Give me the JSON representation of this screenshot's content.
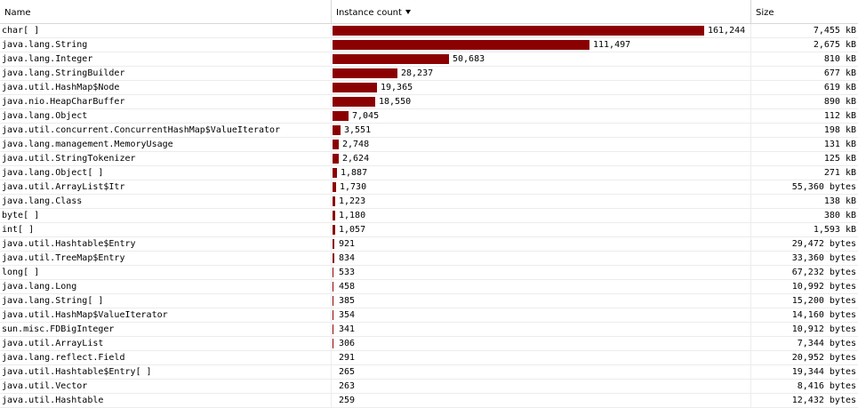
{
  "columns": {
    "name": "Name",
    "instance_count": "Instance count",
    "size": "Size"
  },
  "sort_indicator": "sort-descending-icon",
  "colors": {
    "bar": "#8b0000"
  },
  "max_count": 161244,
  "rows": [
    {
      "name": "char[ ]",
      "count": 161244,
      "count_label": "161,244",
      "size": "7,455 kB"
    },
    {
      "name": "java.lang.String",
      "count": 111497,
      "count_label": "111,497",
      "size": "2,675 kB"
    },
    {
      "name": "java.lang.Integer",
      "count": 50683,
      "count_label": "50,683",
      "size": "810 kB"
    },
    {
      "name": "java.lang.StringBuilder",
      "count": 28237,
      "count_label": "28,237",
      "size": "677 kB"
    },
    {
      "name": "java.util.HashMap$Node",
      "count": 19365,
      "count_label": "19,365",
      "size": "619 kB"
    },
    {
      "name": "java.nio.HeapCharBuffer",
      "count": 18550,
      "count_label": "18,550",
      "size": "890 kB"
    },
    {
      "name": "java.lang.Object",
      "count": 7045,
      "count_label": "7,045",
      "size": "112 kB"
    },
    {
      "name": "java.util.concurrent.ConcurrentHashMap$ValueIterator",
      "count": 3551,
      "count_label": "3,551",
      "size": "198 kB"
    },
    {
      "name": "java.lang.management.MemoryUsage",
      "count": 2748,
      "count_label": "2,748",
      "size": "131 kB"
    },
    {
      "name": "java.util.StringTokenizer",
      "count": 2624,
      "count_label": "2,624",
      "size": "125 kB"
    },
    {
      "name": "java.lang.Object[ ]",
      "count": 1887,
      "count_label": "1,887",
      "size": "271 kB"
    },
    {
      "name": "java.util.ArrayList$Itr",
      "count": 1730,
      "count_label": "1,730",
      "size": "55,360 bytes"
    },
    {
      "name": "java.lang.Class",
      "count": 1223,
      "count_label": "1,223",
      "size": "138 kB"
    },
    {
      "name": "byte[ ]",
      "count": 1180,
      "count_label": "1,180",
      "size": "380 kB"
    },
    {
      "name": "int[ ]",
      "count": 1057,
      "count_label": "1,057",
      "size": "1,593 kB"
    },
    {
      "name": "java.util.Hashtable$Entry",
      "count": 921,
      "count_label": "921",
      "size": "29,472 bytes"
    },
    {
      "name": "java.util.TreeMap$Entry",
      "count": 834,
      "count_label": "834",
      "size": "33,360 bytes"
    },
    {
      "name": "long[ ]",
      "count": 533,
      "count_label": "533",
      "size": "67,232 bytes"
    },
    {
      "name": "java.lang.Long",
      "count": 458,
      "count_label": "458",
      "size": "10,992 bytes"
    },
    {
      "name": "java.lang.String[ ]",
      "count": 385,
      "count_label": "385",
      "size": "15,200 bytes"
    },
    {
      "name": "java.util.HashMap$ValueIterator",
      "count": 354,
      "count_label": "354",
      "size": "14,160 bytes"
    },
    {
      "name": "sun.misc.FDBigInteger",
      "count": 341,
      "count_label": "341",
      "size": "10,912 bytes"
    },
    {
      "name": "java.util.ArrayList",
      "count": 306,
      "count_label": "306",
      "size": "7,344 bytes"
    },
    {
      "name": "java.lang.reflect.Field",
      "count": 291,
      "count_label": "291",
      "size": "20,952 bytes"
    },
    {
      "name": "java.util.Hashtable$Entry[ ]",
      "count": 265,
      "count_label": "265",
      "size": "19,344 bytes"
    },
    {
      "name": "java.util.Vector",
      "count": 263,
      "count_label": "263",
      "size": "8,416 bytes"
    },
    {
      "name": "java.util.Hashtable",
      "count": 259,
      "count_label": "259",
      "size": "12,432 bytes"
    }
  ]
}
